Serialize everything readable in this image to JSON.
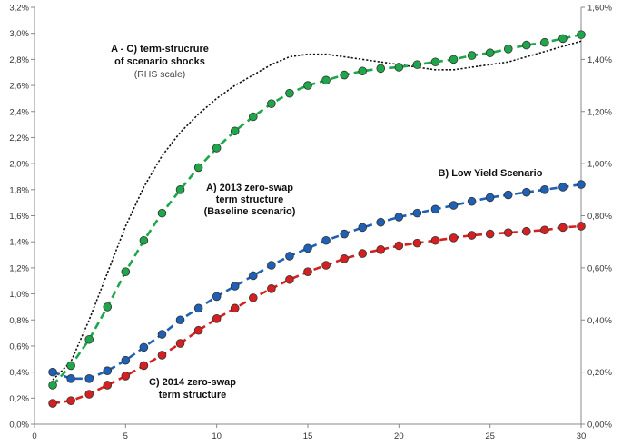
{
  "chart_data": {
    "type": "line",
    "xlim": [
      0,
      30
    ],
    "x_ticks": [
      0,
      5,
      10,
      15,
      20,
      25,
      30
    ],
    "ylim_left": [
      0,
      3.2
    ],
    "y_ticks_left": [
      "0,0%",
      "0,2%",
      "0,4%",
      "0,6%",
      "0,8%",
      "1,0%",
      "1,2%",
      "1,4%",
      "1,6%",
      "1,8%",
      "2,0%",
      "2,2%",
      "2,4%",
      "2,6%",
      "2,8%",
      "3,0%",
      "3,2%"
    ],
    "ylim_right": [
      0,
      1.6
    ],
    "y_ticks_right": [
      "0,00%",
      "0,20%",
      "0,40%",
      "0,60%",
      "0,80%",
      "1,00%",
      "1,20%",
      "1,40%",
      "1,60%"
    ],
    "grid": false,
    "legend": "none",
    "annotations": {
      "shocks_line1": "A - C) term-strucrure",
      "shocks_line2": "of scenario shocks",
      "shocks_line3": "(RHS scale)",
      "baseline_line1": "A) 2013 zero-swap",
      "baseline_line2": "term structure",
      "baseline_line3": "(Baseline scenario)",
      "lowyield": "B) Low Yield Scenario",
      "c2014_line1": "C) 2014 zero-swap",
      "c2014_line2": "term structure"
    },
    "series": [
      {
        "key": "baseline_2013",
        "axis": "left",
        "color": "#1fa64a",
        "x": [
          1,
          2,
          3,
          4,
          5,
          6,
          7,
          8,
          9,
          10,
          11,
          12,
          13,
          14,
          15,
          16,
          17,
          18,
          19,
          20,
          21,
          22,
          23,
          24,
          25,
          26,
          27,
          28,
          29,
          30
        ],
        "values": [
          0.3,
          0.45,
          0.65,
          0.9,
          1.17,
          1.41,
          1.62,
          1.8,
          1.97,
          2.12,
          2.25,
          2.36,
          2.46,
          2.54,
          2.6,
          2.64,
          2.68,
          2.71,
          2.73,
          2.74,
          2.76,
          2.78,
          2.8,
          2.83,
          2.85,
          2.88,
          2.91,
          2.93,
          2.96,
          2.99
        ]
      },
      {
        "key": "low_yield",
        "axis": "left",
        "color": "#1f5fb4",
        "x": [
          1,
          2,
          3,
          4,
          5,
          6,
          7,
          8,
          9,
          10,
          11,
          12,
          13,
          14,
          15,
          16,
          17,
          18,
          19,
          20,
          21,
          22,
          23,
          24,
          25,
          26,
          27,
          28,
          29,
          30
        ],
        "values": [
          0.4,
          0.35,
          0.35,
          0.41,
          0.49,
          0.59,
          0.69,
          0.8,
          0.89,
          0.98,
          1.06,
          1.14,
          1.22,
          1.29,
          1.35,
          1.41,
          1.46,
          1.51,
          1.55,
          1.59,
          1.62,
          1.65,
          1.68,
          1.71,
          1.74,
          1.76,
          1.78,
          1.8,
          1.82,
          1.84
        ]
      },
      {
        "key": "c_2014",
        "axis": "left",
        "color": "#d42020",
        "x": [
          1,
          2,
          3,
          4,
          5,
          6,
          7,
          8,
          9,
          10,
          11,
          12,
          13,
          14,
          15,
          16,
          17,
          18,
          19,
          20,
          21,
          22,
          23,
          24,
          25,
          26,
          27,
          28,
          29,
          30
        ],
        "values": [
          0.16,
          0.18,
          0.23,
          0.3,
          0.37,
          0.45,
          0.53,
          0.62,
          0.72,
          0.81,
          0.89,
          0.97,
          1.04,
          1.11,
          1.17,
          1.22,
          1.27,
          1.31,
          1.34,
          1.37,
          1.39,
          1.41,
          1.43,
          1.45,
          1.46,
          1.47,
          1.48,
          1.49,
          1.51,
          1.52
        ]
      },
      {
        "key": "shocks",
        "axis": "right",
        "color": "#111111",
        "x": [
          1,
          2,
          3,
          4,
          5,
          6,
          7,
          8,
          9,
          10,
          11,
          12,
          13,
          14,
          15,
          16,
          17,
          18,
          19,
          20,
          21,
          22,
          23,
          24,
          25,
          26,
          27,
          28,
          29,
          30
        ],
        "values": [
          0.17,
          0.24,
          0.4,
          0.58,
          0.76,
          0.91,
          1.03,
          1.12,
          1.19,
          1.25,
          1.3,
          1.34,
          1.38,
          1.41,
          1.42,
          1.42,
          1.41,
          1.4,
          1.39,
          1.38,
          1.37,
          1.36,
          1.36,
          1.37,
          1.38,
          1.39,
          1.41,
          1.43,
          1.45,
          1.47
        ]
      }
    ]
  }
}
